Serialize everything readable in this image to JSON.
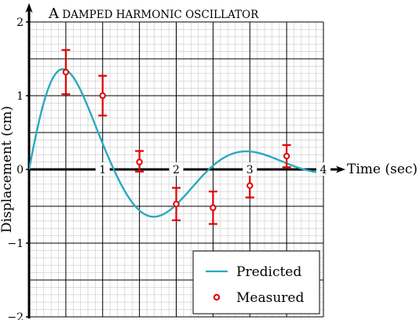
{
  "chart_data": {
    "type": "line",
    "title": "A damped harmonic oscillator",
    "xlabel": "Time (sec)",
    "ylabel": "Displacement (cm)",
    "xlim": [
      0,
      4
    ],
    "ylim": [
      -2,
      2
    ],
    "x_ticks": [
      {
        "value": 1,
        "label": "1"
      },
      {
        "value": 2,
        "label": "2"
      },
      {
        "value": 3,
        "label": "3"
      },
      {
        "value": 4,
        "label": "4"
      }
    ],
    "y_ticks": [
      {
        "value": -2,
        "label": "−2"
      },
      {
        "value": -1,
        "label": "−1"
      },
      {
        "value": 0,
        "label": "0"
      },
      {
        "value": 1,
        "label": "1"
      },
      {
        "value": 2,
        "label": "2"
      }
    ],
    "grid": true,
    "legend_position": "bottom-right",
    "series": [
      {
        "name": "Predicted",
        "kind": "line",
        "color": "#2aa9c0",
        "x": [
          0,
          0.1,
          0.2,
          0.3,
          0.4,
          0.5,
          0.6,
          0.7,
          0.8,
          0.9,
          1.0,
          1.1,
          1.2,
          1.3,
          1.4,
          1.5,
          1.6,
          1.7,
          1.8,
          1.9,
          2.0,
          2.1,
          2.2,
          2.3,
          2.4,
          2.5,
          2.6,
          2.7,
          2.8,
          2.9,
          3.0,
          3.1,
          3.2,
          3.3,
          3.4,
          3.5,
          3.6,
          3.7,
          3.8,
          3.9,
          4.0
        ],
        "y": [
          0,
          0.496,
          0.907,
          1.193,
          1.339,
          1.35,
          1.252,
          1.075,
          0.849,
          0.601,
          0.352,
          0.115,
          -0.103,
          -0.293,
          -0.446,
          -0.557,
          -0.622,
          -0.642,
          -0.62,
          -0.562,
          -0.477,
          -0.374,
          -0.262,
          -0.149,
          -0.042,
          0.052,
          0.129,
          0.187,
          0.225,
          0.243,
          0.243,
          0.228,
          0.2,
          0.164,
          0.124,
          0.083,
          0.044,
          0.01,
          -0.017,
          -0.036,
          -0.047
        ]
      },
      {
        "name": "Measured",
        "kind": "points",
        "color": "#e00000",
        "x": [
          0.5,
          1.0,
          1.5,
          2.0,
          2.5,
          3.0,
          3.5
        ],
        "y": [
          1.32,
          1.0,
          0.1,
          -0.47,
          -0.52,
          -0.22,
          0.18
        ],
        "err_low": [
          0.3,
          0.27,
          0.13,
          0.22,
          0.22,
          0.16,
          0.15
        ],
        "err_high": [
          0.3,
          0.27,
          0.15,
          0.22,
          0.22,
          0.16,
          0.15
        ]
      }
    ]
  }
}
